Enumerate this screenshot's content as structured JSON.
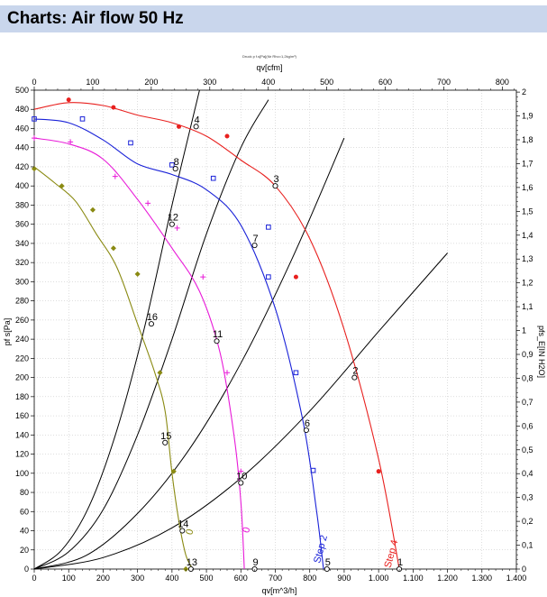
{
  "header": {
    "title": "Charts: Air flow 50 Hz"
  },
  "colors": {
    "header_bg": "#c9d6ec",
    "red": "#e8201e",
    "blue": "#1a22d8",
    "magenta": "#e81ad8",
    "olive": "#8a8a12",
    "black": "#000000"
  },
  "chart_data": {
    "type": "line",
    "subtitle": "Druck p f.s[Pa](für Rho=1,2kg/m³)",
    "xlabel": "qv[m^3/h]",
    "top_xlabel": "qv[cfm]",
    "ylabel": "pf s[Pa]",
    "right_ylabel": "pfs_E[IN H2O]",
    "xlim": [
      0,
      1400
    ],
    "ylim": [
      0,
      500
    ],
    "top_xlim": [
      0,
      824
    ],
    "right_ylim": [
      0,
      2.008
    ],
    "x_ticks": [
      "0",
      "100",
      "200",
      "300",
      "400",
      "500",
      "600",
      "700",
      "800",
      "900",
      "1.000",
      "1.100",
      "1.200",
      "1.300",
      "1.400"
    ],
    "y_ticks": [
      "0",
      "20",
      "40",
      "60",
      "80",
      "100",
      "120",
      "140",
      "160",
      "180",
      "200",
      "220",
      "240",
      "260",
      "280",
      "300",
      "320",
      "340",
      "360",
      "380",
      "400",
      "420",
      "440",
      "460",
      "480",
      "500"
    ],
    "top_x_ticks": [
      "0",
      "100",
      "200",
      "300",
      "400",
      "500",
      "600",
      "700",
      "800"
    ],
    "right_y_ticks": [
      "0",
      "0,1",
      "0,2",
      "0,3",
      "0,4",
      "0,5",
      "0,6",
      "0,7",
      "0,8",
      "0,9",
      "1",
      "1,1",
      "1,2",
      "1,3",
      "1,4",
      "1,5",
      "1,6",
      "1,7",
      "1,8",
      "1,9",
      "2"
    ],
    "grid": true,
    "fan_curves": [
      {
        "name": "Step 4",
        "color": "#e8201e",
        "marker": "circle",
        "label_x": 1045,
        "label_y": 15,
        "x": [
          0,
          100,
          200,
          300,
          400,
          500,
          600,
          700,
          800,
          900,
          1000,
          1060
        ],
        "y": [
          480,
          487,
          484,
          474,
          466,
          452,
          427,
          400,
          345,
          250,
          115,
          0
        ],
        "markers_x": [
          100,
          230,
          420,
          560,
          760,
          1000
        ],
        "markers_y": [
          490,
          482,
          462,
          452,
          305,
          102
        ]
      },
      {
        "name": "Step 2",
        "color": "#1a22d8",
        "marker": "square",
        "label_x": 840,
        "label_y": 20,
        "x": [
          0,
          100,
          200,
          300,
          400,
          500,
          600,
          700,
          780,
          820,
          840
        ],
        "y": [
          470,
          466,
          448,
          423,
          412,
          396,
          359,
          272,
          155,
          60,
          0
        ],
        "markers_x": [
          0,
          140,
          280,
          400,
          520,
          680,
          680,
          760,
          810
        ],
        "markers_y": [
          470,
          470,
          445,
          422,
          408,
          357,
          305,
          205,
          103
        ]
      },
      {
        "name": "0",
        "color": "#e81ad8",
        "marker": "plus",
        "label_x": 625,
        "label_y": 40,
        "x": [
          0,
          100,
          200,
          300,
          400,
          480,
          540,
          580,
          600,
          610
        ],
        "y": [
          450,
          444,
          428,
          386,
          335,
          290,
          225,
          140,
          70,
          0
        ],
        "markers_x": [
          0,
          105,
          235,
          330,
          415,
          490,
          560,
          600
        ],
        "markers_y": [
          450,
          446,
          410,
          382,
          356,
          305,
          205,
          102
        ]
      },
      {
        "name": "0",
        "color": "#8a8a12",
        "marker": "diamond",
        "label_x": 460,
        "label_y": 38,
        "x": [
          0,
          60,
          120,
          180,
          240,
          300,
          350,
          380,
          400,
          420,
          440,
          460
        ],
        "y": [
          420,
          403,
          384,
          350,
          315,
          256,
          205,
          165,
          100,
          50,
          15,
          0
        ],
        "markers_x": [
          0,
          80,
          170,
          230,
          300,
          365,
          405,
          440
        ],
        "markers_y": [
          418,
          400,
          375,
          335,
          308,
          205,
          102,
          0
        ]
      }
    ],
    "system_curves": [
      {
        "color": "#000000",
        "x": [
          0,
          200,
          400,
          600,
          800,
          1000,
          1200
        ],
        "y": [
          0,
          12,
          43,
          95,
          165,
          248,
          330
        ]
      },
      {
        "color": "#000000",
        "x": [
          0,
          150,
          300,
          450,
          600,
          750,
          900
        ],
        "y": [
          0,
          14,
          58,
          125,
          215,
          325,
          450
        ]
      },
      {
        "color": "#000000",
        "x": [
          0,
          100,
          200,
          300,
          400,
          500,
          600,
          680
        ],
        "y": [
          0,
          18,
          62,
          140,
          240,
          350,
          440,
          490
        ]
      },
      {
        "color": "#000000",
        "x": [
          0,
          80,
          160,
          240,
          320,
          400,
          480
        ],
        "y": [
          0,
          20,
          66,
          145,
          252,
          380,
          500
        ]
      }
    ],
    "operating_points": [
      {
        "label": "1",
        "x": 1060,
        "y": 0
      },
      {
        "label": "2",
        "x": 930,
        "y": 200
      },
      {
        "label": "3",
        "x": 700,
        "y": 400
      },
      {
        "label": "4",
        "x": 470,
        "y": 462
      },
      {
        "label": "5",
        "x": 850,
        "y": 0
      },
      {
        "label": "6",
        "x": 790,
        "y": 145
      },
      {
        "label": "7",
        "x": 640,
        "y": 338
      },
      {
        "label": "8",
        "x": 410,
        "y": 418
      },
      {
        "label": "9",
        "x": 640,
        "y": 0
      },
      {
        "label": "10",
        "x": 600,
        "y": 90
      },
      {
        "label": "11",
        "x": 530,
        "y": 238
      },
      {
        "label": "12",
        "x": 400,
        "y": 360
      },
      {
        "label": "13",
        "x": 455,
        "y": 0
      },
      {
        "label": "14",
        "x": 430,
        "y": 40
      },
      {
        "label": "15",
        "x": 380,
        "y": 132
      },
      {
        "label": "16",
        "x": 340,
        "y": 256
      }
    ]
  }
}
